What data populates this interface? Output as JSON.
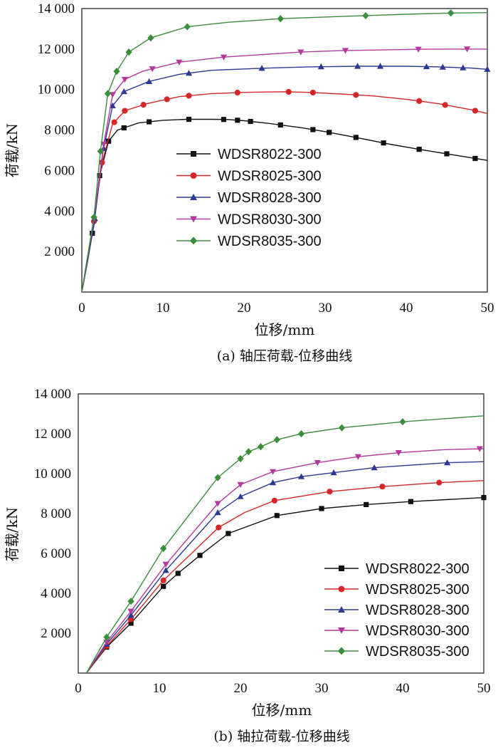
{
  "chart_data": [
    {
      "type": "line",
      "caption": "(a) 轴压荷载-位移曲线",
      "xlabel": "位移/mm",
      "ylabel": "荷载/kN",
      "xlim": [
        0,
        50
      ],
      "ylim": [
        0,
        14000
      ],
      "xticks": [
        0,
        10,
        20,
        30,
        40,
        50
      ],
      "yticks": [
        2000,
        4000,
        6000,
        8000,
        10000,
        12000,
        14000
      ],
      "xtick_labels": [
        "0",
        "10",
        "20",
        "30",
        "40",
        "50"
      ],
      "ytick_labels": [
        "2 000",
        "4 000",
        "6 000",
        "8 000",
        "10 000",
        "12 000",
        "14 000"
      ],
      "legend_position": "center",
      "series": [
        {
          "name": "WDSR8022-300",
          "color": "#111111",
          "marker": "square",
          "x": [
            1.3,
            2.2,
            3.3,
            5.2,
            7.5,
            13.2,
            17.5,
            21.5,
            28,
            32.5,
            37.5,
            42.5,
            47,
            50
          ],
          "y": [
            2900,
            5750,
            7450,
            8000,
            8350,
            8500,
            8520,
            8400,
            7900,
            7700,
            7300,
            7050,
            6800,
            6500
          ],
          "curve": [
            [
              0,
              0
            ],
            [
              0.7,
              1500
            ],
            [
              1.3,
              2900
            ],
            [
              2.2,
              5750
            ],
            [
              3.3,
              7450
            ],
            [
              4.4,
              8000
            ],
            [
              7,
              8350
            ],
            [
              10,
              8480
            ],
            [
              13,
              8530
            ],
            [
              16,
              8530
            ],
            [
              18,
              8520
            ],
            [
              20,
              8460
            ],
            [
              23,
              8330
            ],
            [
              27,
              8120
            ],
            [
              30,
              7920
            ],
            [
              34,
              7620
            ],
            [
              38,
              7300
            ],
            [
              42,
              7020
            ],
            [
              46,
              6760
            ],
            [
              50,
              6500
            ]
          ],
          "marker_x": [
            1.3,
            2.2,
            3.3,
            5.2,
            8.3,
            13.2,
            17.5,
            19.2,
            20.8,
            24.5,
            28.5,
            30.5,
            33.8,
            37.2,
            41.6,
            45,
            48.5
          ]
        },
        {
          "name": "WDSR8025-300",
          "color": "#d62728",
          "marker": "circle",
          "x": [
            1.4,
            2.5,
            3.8,
            5.3,
            8,
            12.5,
            19.5,
            25.5,
            28.5,
            34,
            40,
            44,
            50
          ],
          "y": [
            3200,
            6400,
            8300,
            8950,
            9300,
            9700,
            9850,
            9900,
            9880,
            9750,
            9500,
            9250,
            8800
          ],
          "curve": [
            [
              0,
              0
            ],
            [
              0.7,
              1600
            ],
            [
              1.4,
              3200
            ],
            [
              2.5,
              6400
            ],
            [
              3.8,
              8300
            ],
            [
              5.3,
              8950
            ],
            [
              8,
              9300
            ],
            [
              12,
              9650
            ],
            [
              16,
              9800
            ],
            [
              20,
              9860
            ],
            [
              25,
              9890
            ],
            [
              28,
              9860
            ],
            [
              32,
              9780
            ],
            [
              36,
              9680
            ],
            [
              40,
              9520
            ],
            [
              44,
              9300
            ],
            [
              48,
              9000
            ],
            [
              50,
              8820
            ]
          ],
          "marker_x": [
            1.5,
            2.5,
            4,
            5.3,
            7.6,
            10.5,
            13.2,
            19.2,
            25.5,
            28.5,
            33.8,
            41.6,
            44.8,
            48.5
          ]
        },
        {
          "name": "WDSR8028-300",
          "color": "#2b3990",
          "marker": "triangle-up",
          "x": [
            1.5,
            2.6,
            3.8,
            5.2,
            8.3,
            13.2,
            22.2,
            30,
            36.8,
            42.8,
            50
          ],
          "y": [
            3300,
            6900,
            9200,
            9900,
            10400,
            10850,
            11050,
            11150,
            11150,
            11130,
            11000
          ],
          "curve": [
            [
              0,
              0
            ],
            [
              0.75,
              1650
            ],
            [
              1.5,
              3300
            ],
            [
              2.6,
              6900
            ],
            [
              3.8,
              9200
            ],
            [
              5.2,
              9900
            ],
            [
              8.3,
              10400
            ],
            [
              12,
              10750
            ],
            [
              16,
              10950
            ],
            [
              22,
              11050
            ],
            [
              28,
              11120
            ],
            [
              34,
              11150
            ],
            [
              40,
              11150
            ],
            [
              44,
              11120
            ],
            [
              48,
              11060
            ],
            [
              50,
              11000
            ]
          ],
          "marker_x": [
            1.6,
            2.7,
            3.8,
            5.2,
            8.3,
            13.2,
            22.2,
            29.5,
            34,
            36.8,
            42.5,
            44.5,
            47,
            50
          ]
        },
        {
          "name": "WDSR8030-300",
          "color": "#b23a9e",
          "marker": "triangle-down",
          "x": [
            1.5,
            2.7,
            3.8,
            5.3,
            7.5,
            12,
            17.5,
            27,
            36,
            47.5,
            50
          ],
          "y": [
            3600,
            7300,
            9750,
            10500,
            10900,
            11350,
            11600,
            11850,
            11950,
            12000,
            12000
          ],
          "curve": [
            [
              0,
              0
            ],
            [
              0.75,
              1800
            ],
            [
              1.5,
              3600
            ],
            [
              2.7,
              7300
            ],
            [
              3.8,
              9750
            ],
            [
              5.3,
              10500
            ],
            [
              7.5,
              10900
            ],
            [
              12,
              11350
            ],
            [
              17.5,
              11600
            ],
            [
              22,
              11720
            ],
            [
              27,
              11850
            ],
            [
              32,
              11920
            ],
            [
              36,
              11950
            ],
            [
              42,
              11990
            ],
            [
              47.5,
              12000
            ],
            [
              50,
              12000
            ]
          ],
          "marker_x": [
            1.5,
            2.7,
            3.8,
            5.3,
            8.7,
            12,
            17.5,
            27,
            32.5,
            41.5,
            47.5
          ]
        },
        {
          "name": "WDSR8035-300",
          "color": "#3a8d3a",
          "marker": "diamond",
          "x": [
            1.5,
            2.3,
            3.2,
            4.3,
            5.8,
            8.5,
            13,
            24.5,
            35,
            45.5,
            50
          ],
          "y": [
            3700,
            6950,
            9800,
            10900,
            11850,
            12550,
            13100,
            13500,
            13650,
            13780,
            13800
          ],
          "curve": [
            [
              0,
              0
            ],
            [
              0.75,
              1850
            ],
            [
              1.5,
              3700
            ],
            [
              2.3,
              6950
            ],
            [
              3.2,
              9800
            ],
            [
              4.3,
              10900
            ],
            [
              5.8,
              11850
            ],
            [
              8.5,
              12550
            ],
            [
              13,
              13100
            ],
            [
              18,
              13320
            ],
            [
              24.5,
              13500
            ],
            [
              30,
              13580
            ],
            [
              35,
              13650
            ],
            [
              40,
              13720
            ],
            [
              45.5,
              13780
            ],
            [
              50,
              13800
            ]
          ],
          "marker_x": [
            1.5,
            2.3,
            3.2,
            4.3,
            5.8,
            8.5,
            13,
            24.5,
            35,
            45.5
          ]
        }
      ]
    },
    {
      "type": "line",
      "caption": "(b) 轴拉荷载-位移曲线",
      "xlabel": "位移/mm",
      "ylabel": "荷载/kN",
      "xlim": [
        0,
        50
      ],
      "ylim": [
        0,
        14000
      ],
      "xticks": [
        0,
        10,
        20,
        30,
        40,
        50
      ],
      "yticks": [
        2000,
        4000,
        6000,
        8000,
        10000,
        12000,
        14000
      ],
      "xtick_labels": [
        "0",
        "10",
        "20",
        "30",
        "40",
        "50"
      ],
      "ytick_labels": [
        "2 000",
        "4 000",
        "6 000",
        "8 000",
        "10 000",
        "12 000",
        "14 000"
      ],
      "legend_position": "bottom-right",
      "series": [
        {
          "name": "WDSR8022-300",
          "color": "#111111",
          "marker": "square",
          "x": [
            3.5,
            6.5,
            10.5,
            12.3,
            15,
            18.5,
            24.5,
            30,
            35.5,
            41,
            50
          ],
          "y": [
            1300,
            2500,
            4350,
            5000,
            5900,
            7000,
            7900,
            8250,
            8450,
            8600,
            8800
          ],
          "curve": [
            [
              1,
              0
            ],
            [
              3.5,
              1300
            ],
            [
              6.5,
              2500
            ],
            [
              10.5,
              4350
            ],
            [
              12.3,
              5000
            ],
            [
              15,
              5900
            ],
            [
              18.5,
              7000
            ],
            [
              24.5,
              7900
            ],
            [
              30,
              8250
            ],
            [
              35.5,
              8450
            ],
            [
              41,
              8600
            ],
            [
              50,
              8800
            ]
          ],
          "marker_x": [
            3.5,
            6.5,
            10.5,
            12.3,
            15,
            18.5,
            24.5,
            30,
            35.5,
            41,
            50
          ]
        },
        {
          "name": "WDSR8025-300",
          "color": "#d62728",
          "marker": "circle",
          "x": [
            3.5,
            6.5,
            10.5,
            17.3,
            24.2,
            31,
            37.5,
            44.5,
            50
          ],
          "y": [
            1350,
            2700,
            4650,
            7300,
            8650,
            9100,
            9350,
            9550,
            9650
          ],
          "curve": [
            [
              1,
              0
            ],
            [
              3.5,
              1350
            ],
            [
              6.5,
              2700
            ],
            [
              10.5,
              4650
            ],
            [
              17.3,
              7300
            ],
            [
              20.5,
              8050
            ],
            [
              24.2,
              8650
            ],
            [
              31,
              9100
            ],
            [
              37.5,
              9350
            ],
            [
              44.5,
              9550
            ],
            [
              50,
              9650
            ]
          ],
          "marker_x": [
            3.5,
            6.5,
            10.5,
            17.3,
            24.2,
            31,
            37.5,
            44.5
          ]
        },
        {
          "name": "WDSR8028-300",
          "color": "#2b3990",
          "marker": "triangle-up",
          "x": [
            3.5,
            6.5,
            10.8,
            17.2,
            20,
            24,
            27.5,
            31.5,
            36.5,
            45.5,
            50
          ],
          "y": [
            1450,
            2900,
            5150,
            8050,
            8850,
            9550,
            9850,
            10050,
            10300,
            10550,
            10600
          ],
          "curve": [
            [
              1,
              0
            ],
            [
              3.5,
              1450
            ],
            [
              6.5,
              2900
            ],
            [
              10.8,
              5150
            ],
            [
              17.2,
              8050
            ],
            [
              20,
              8850
            ],
            [
              24,
              9550
            ],
            [
              27.5,
              9850
            ],
            [
              31.5,
              10050
            ],
            [
              36.5,
              10300
            ],
            [
              45.5,
              10550
            ],
            [
              50,
              10600
            ]
          ],
          "marker_x": [
            3.5,
            6.5,
            10.8,
            17.2,
            20,
            24,
            27.5,
            31.5,
            36.5,
            45.5
          ]
        },
        {
          "name": "WDSR8030-300",
          "color": "#b23a9e",
          "marker": "triangle-down",
          "x": [
            3.5,
            6.5,
            10.8,
            17.2,
            20,
            24,
            29.5,
            34.5,
            39.5,
            49.5
          ],
          "y": [
            1550,
            3100,
            5450,
            8500,
            9450,
            10100,
            10550,
            10850,
            11050,
            11300
          ],
          "curve": [
            [
              1,
              0
            ],
            [
              3.5,
              1550
            ],
            [
              6.5,
              3100
            ],
            [
              10.8,
              5450
            ],
            [
              17.2,
              8500
            ],
            [
              20,
              9450
            ],
            [
              24,
              10100
            ],
            [
              29.5,
              10550
            ],
            [
              34.5,
              10850
            ],
            [
              39.5,
              11050
            ],
            [
              45,
              11200
            ],
            [
              50,
              11250
            ]
          ],
          "marker_x": [
            3.5,
            6.5,
            10.8,
            17.2,
            20,
            24,
            29.5,
            34.5,
            39.5,
            49.5
          ]
        },
        {
          "name": "WDSR8035-300",
          "color": "#3a8d3a",
          "marker": "diamond",
          "x": [
            3.5,
            6.5,
            10.5,
            17.2,
            20,
            21,
            22.5,
            24.5,
            27.5,
            32.5,
            40,
            50
          ],
          "y": [
            1800,
            3600,
            6250,
            9800,
            10750,
            11100,
            11350,
            11700,
            12000,
            12300,
            12600,
            12900
          ],
          "curve": [
            [
              1,
              0
            ],
            [
              3.5,
              1800
            ],
            [
              6.5,
              3600
            ],
            [
              10.5,
              6250
            ],
            [
              17.2,
              9800
            ],
            [
              20,
              10750
            ],
            [
              21,
              11100
            ],
            [
              22.5,
              11350
            ],
            [
              24.5,
              11700
            ],
            [
              27.5,
              12000
            ],
            [
              32.5,
              12300
            ],
            [
              40,
              12600
            ],
            [
              50,
              12900
            ]
          ],
          "marker_x": [
            3.5,
            6.5,
            10.5,
            17.2,
            20,
            21,
            22.5,
            24.5,
            27.5,
            32.5,
            40
          ]
        }
      ]
    }
  ]
}
